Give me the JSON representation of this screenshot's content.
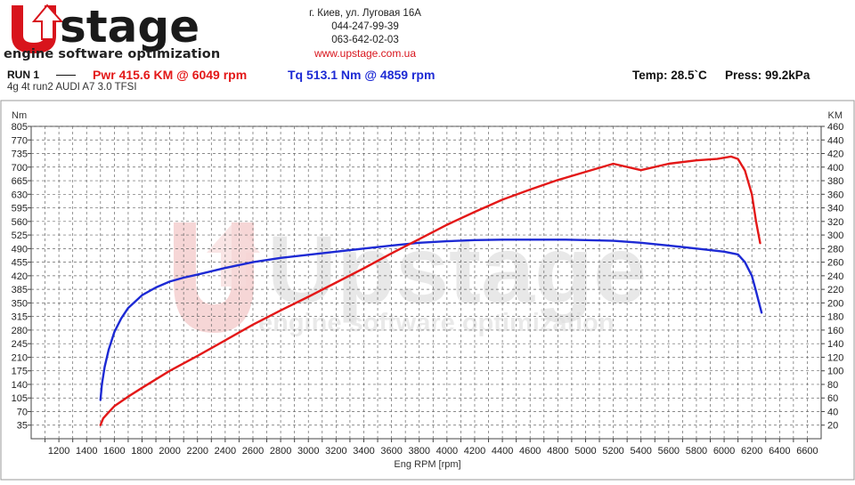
{
  "header": {
    "brand": "Upstage",
    "slogan": "engine software optimization",
    "address": "г. Киев, ул. Луговая 16А",
    "phone1": "044-247-99-39",
    "phone2": "063-642-02-03",
    "website": "www.upstage.com.ua"
  },
  "run": {
    "label": "RUN 1",
    "power_summary": "Pwr  415.6 KM @ 6049 rpm",
    "torque_summary": "Tq 513.1 Nm @ 4859 rpm",
    "temperature": "Temp: 28.5`C",
    "pressure": "Press: 99.2kPa",
    "description": "4g 4t run2 AUDI A7 3.0 TFSI"
  },
  "colors": {
    "power": "#e31818",
    "torque": "#1d2ad4",
    "brand_red": "#d8141c",
    "watermark": "#d9d9d9"
  },
  "chart_data": {
    "type": "line",
    "xlabel": "Eng RPM [rpm]",
    "ylabel_left": "Nm",
    "ylabel_right": "KM",
    "xlim": [
      1000,
      6700
    ],
    "x_ticks": [
      1200,
      1400,
      1600,
      1800,
      2000,
      2200,
      2400,
      2600,
      2800,
      3000,
      3200,
      3400,
      3600,
      3800,
      4000,
      4200,
      4400,
      4600,
      4800,
      5000,
      5200,
      5400,
      5600,
      5800,
      6000,
      6200,
      6400,
      6600
    ],
    "ylim_left": [
      0,
      805
    ],
    "y_ticks_left": [
      35,
      70,
      105,
      140,
      175,
      210,
      245,
      280,
      315,
      350,
      385,
      420,
      455,
      490,
      525,
      560,
      595,
      630,
      665,
      700,
      735,
      770,
      805
    ],
    "ylim_right": [
      0,
      460
    ],
    "y_ticks_right": [
      20,
      40,
      60,
      80,
      100,
      120,
      140,
      160,
      180,
      200,
      220,
      240,
      260,
      280,
      300,
      320,
      340,
      360,
      380,
      400,
      420,
      440,
      460
    ],
    "grid": true,
    "series": [
      {
        "name": "Tq",
        "axis": "left",
        "x": [
          1500,
          1510,
          1530,
          1560,
          1600,
          1650,
          1700,
          1800,
          1900,
          2000,
          2100,
          2200,
          2400,
          2600,
          2800,
          3000,
          3200,
          3400,
          3600,
          3800,
          4000,
          4200,
          4400,
          4600,
          4859,
          5000,
          5200,
          5400,
          5600,
          5800,
          6000,
          6100,
          6150,
          6200,
          6230,
          6270
        ],
        "y": [
          100,
          140,
          185,
          230,
          275,
          310,
          337,
          370,
          390,
          405,
          415,
          423,
          440,
          455,
          466,
          474,
          482,
          490,
          498,
          505,
          509,
          512,
          513,
          513,
          513.1,
          512,
          510,
          505,
          498,
          490,
          482,
          475,
          455,
          420,
          380,
          325
        ]
      },
      {
        "name": "Pwr",
        "axis": "right",
        "x": [
          1500,
          1520,
          1550,
          1600,
          1700,
          1800,
          2000,
          2200,
          2400,
          2600,
          2800,
          3000,
          3200,
          3400,
          3600,
          3800,
          4000,
          4200,
          4400,
          4600,
          4800,
          5000,
          5200,
          5400,
          5600,
          5800,
          5950,
          6049,
          6100,
          6150,
          6200,
          6230,
          6260
        ],
        "y": [
          20,
          30,
          37,
          48,
          62,
          75,
          100,
          122,
          145,
          168,
          189,
          209,
          230,
          251,
          273,
          294,
          315,
          334,
          352,
          367,
          381,
          393,
          405,
          395.5,
          405,
          410,
          412,
          415.6,
          412,
          395,
          360,
          320,
          288
        ]
      }
    ]
  }
}
